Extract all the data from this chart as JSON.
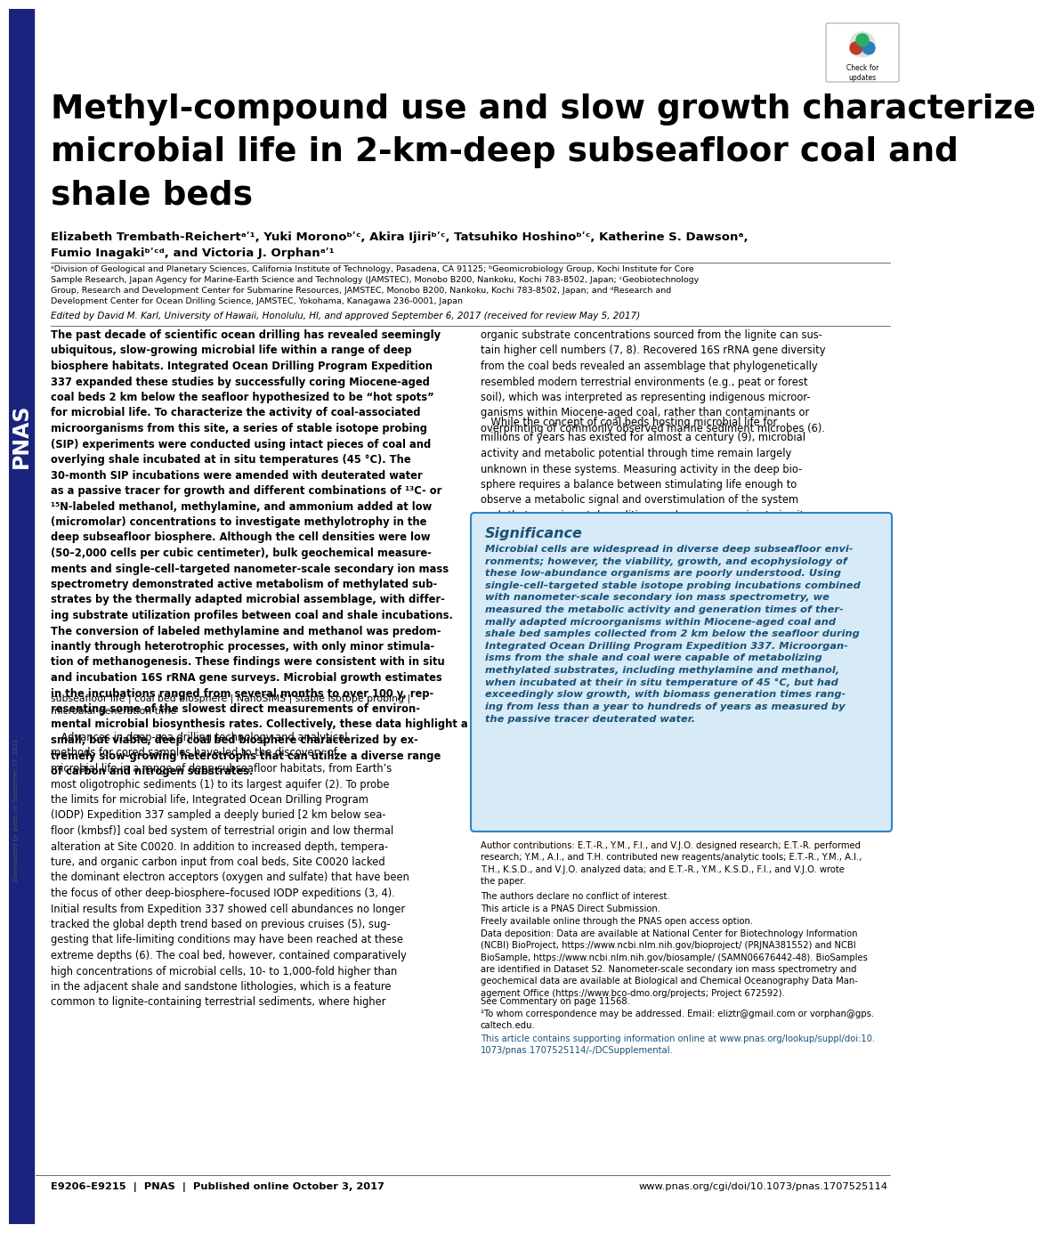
{
  "title_line1": "Methyl-compound use and slow growth characterize",
  "title_line2": "microbial life in 2-km-deep subseafloor coal and",
  "title_line3": "shale beds",
  "footer_left": "E9206–E9215  |  PNAS  |  Published online October 3, 2017",
  "footer_right": "www.pnas.org/cgi/doi/10.1073/pnas.1707525114",
  "sidebar_color": "#1a237e",
  "significance_bg": "#d6eaf8",
  "significance_border": "#2e86c1",
  "page_bg": "#ffffff",
  "link_color": "#1a5276",
  "downloaded_text": "Downloaded by guest on September 27, 2021"
}
